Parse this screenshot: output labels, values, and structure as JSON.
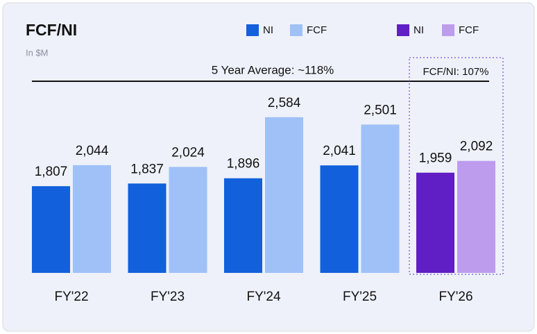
{
  "chart_data": {
    "type": "bar",
    "title": "FCF/NI",
    "subtitle": "In $M",
    "annotations": [
      "5 Year Average: ~118%",
      "FCF/NI: 107%"
    ],
    "categories": [
      "FY'22",
      "FY'23",
      "FY'24",
      "FY'25",
      "FY'26"
    ],
    "series": [
      {
        "name": "NI",
        "color": "#1260dc",
        "values": [
          1807,
          1837,
          1896,
          2041,
          null
        ],
        "value_labels": [
          "1,807",
          "1,837",
          "1,896",
          "2,041",
          null
        ]
      },
      {
        "name": "FCF",
        "color": "#9fc1f8",
        "values": [
          2044,
          2024,
          2584,
          2501,
          null
        ],
        "value_labels": [
          "2,044",
          "2,024",
          "2,584",
          "2,501",
          null
        ]
      },
      {
        "name": "NI",
        "color": "#5f1fc4",
        "values": [
          null,
          null,
          null,
          null,
          1959
        ],
        "value_labels": [
          null,
          null,
          null,
          null,
          "1,959"
        ]
      },
      {
        "name": "FCF",
        "color": "#bd9cee",
        "values": [
          null,
          null,
          null,
          null,
          2092
        ],
        "value_labels": [
          null,
          null,
          null,
          null,
          "2,092"
        ]
      }
    ],
    "ylim": [
      830,
      2950
    ]
  }
}
